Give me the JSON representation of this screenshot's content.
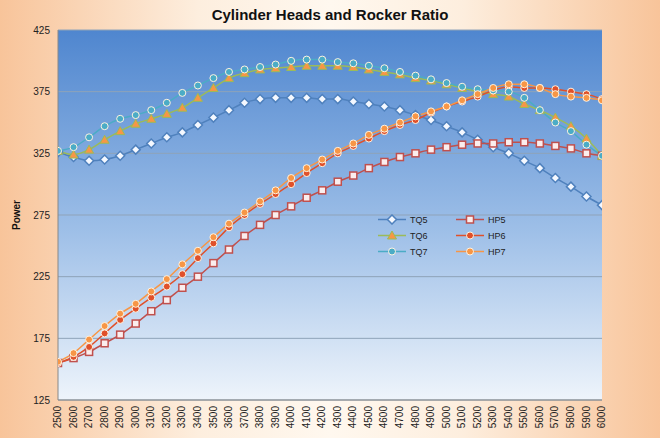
{
  "chart_data": {
    "type": "line",
    "title": "Cylinder Heads and Rocker Ratio",
    "y_label": "Power",
    "x": [
      2500,
      2600,
      2700,
      2800,
      2900,
      3000,
      3100,
      3200,
      3300,
      3400,
      3500,
      3600,
      3700,
      3800,
      3900,
      4000,
      4100,
      4200,
      4300,
      4400,
      4500,
      4600,
      4700,
      4800,
      4900,
      5000,
      5100,
      5200,
      5300,
      5400,
      5500,
      5600,
      5700,
      5800,
      5900,
      6000
    ],
    "xlim": [
      2500,
      6000
    ],
    "xticks": [
      2500,
      2600,
      2700,
      2800,
      2900,
      3000,
      3100,
      3200,
      3300,
      3400,
      3500,
      3600,
      3700,
      3800,
      3900,
      4000,
      4100,
      4200,
      4300,
      4400,
      4500,
      4600,
      4700,
      4800,
      4900,
      5000,
      5100,
      5200,
      5300,
      5400,
      5500,
      5600,
      5700,
      5800,
      5900,
      6000
    ],
    "ylim": [
      125,
      425
    ],
    "yticks": [
      125,
      175,
      225,
      275,
      325,
      375,
      425
    ],
    "grid": true,
    "legend": "right",
    "series": [
      {
        "name": "TQ5",
        "color": "#4f81bd",
        "marker": "diamond",
        "values": [
          326,
          322,
          319,
          320,
          323,
          328,
          333,
          338,
          342,
          348,
          354,
          360,
          366,
          369,
          370,
          370,
          370,
          369,
          369,
          367,
          365,
          363,
          360,
          356,
          352,
          347,
          342,
          336,
          330,
          325,
          319,
          313,
          305,
          298,
          290,
          283
        ]
      },
      {
        "name": "HP5",
        "color": "#c0504d",
        "marker": "square",
        "values": [
          155,
          159,
          164,
          171,
          178,
          187,
          197,
          206,
          216,
          225,
          236,
          247,
          258,
          267,
          275,
          282,
          289,
          295,
          302,
          307,
          313,
          318,
          322,
          325,
          328,
          330,
          332,
          333,
          333,
          334,
          334,
          333,
          331,
          329,
          325,
          323
        ]
      },
      {
        "name": "TQ6",
        "color": "#9bbb59",
        "marker": "triangle",
        "values": [
          327,
          324,
          328,
          336,
          343,
          349,
          353,
          357,
          362,
          370,
          378,
          386,
          390,
          393,
          394,
          395,
          396,
          396,
          396,
          395,
          393,
          391,
          389,
          386,
          384,
          381,
          378,
          375,
          373,
          371,
          365,
          360,
          354,
          347,
          337,
          323
        ]
      },
      {
        "name": "HP6",
        "color": "#e0502a",
        "marker": "circle",
        "values": [
          155,
          160,
          168,
          179,
          190,
          199,
          208,
          217,
          227,
          240,
          252,
          265,
          275,
          284,
          292,
          300,
          309,
          317,
          325,
          331,
          337,
          343,
          348,
          352,
          358,
          363,
          367,
          371,
          376,
          379,
          378,
          378,
          377,
          375,
          373,
          369
        ]
      },
      {
        "name": "TQ7",
        "color": "#4bacc6",
        "marker": "circle",
        "values": [
          327,
          330,
          338,
          347,
          353,
          356,
          360,
          366,
          374,
          380,
          386,
          391,
          393,
          395,
          397,
          400,
          401,
          401,
          399,
          398,
          396,
          394,
          391,
          388,
          385,
          382,
          379,
          377,
          376,
          375,
          370,
          360,
          350,
          343,
          332,
          323
        ]
      },
      {
        "name": "HP7",
        "color": "#f79646",
        "marker": "circle",
        "values": [
          156,
          163,
          174,
          185,
          195,
          203,
          213,
          223,
          235,
          246,
          257,
          268,
          277,
          286,
          295,
          305,
          313,
          320,
          327,
          333,
          340,
          345,
          350,
          355,
          359,
          363,
          368,
          373,
          378,
          381,
          381,
          378,
          373,
          371,
          370,
          368
        ]
      }
    ]
  }
}
